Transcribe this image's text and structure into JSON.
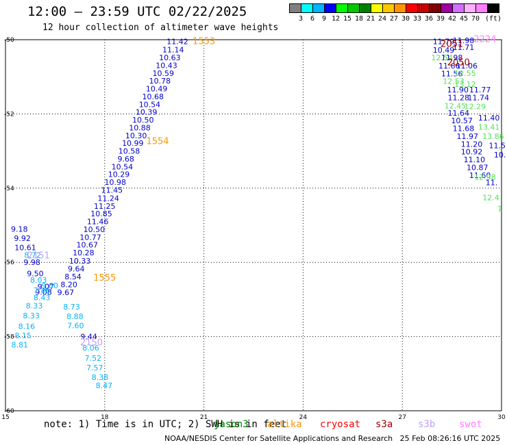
{
  "header": {
    "title": "12:00 – 23:59 UTC 02/22/2025",
    "subtitle": "12 hour collection of altimeter wave heights"
  },
  "legend": {
    "unit": "(ft)",
    "colors": [
      "#808080",
      "#00ffff",
      "#00b4ff",
      "#0000ff",
      "#00ff00",
      "#00c800",
      "#008000",
      "#ffff00",
      "#ffc800",
      "#ff9600",
      "#ff0000",
      "#c80000",
      "#800000",
      "#a000a0",
      "#d070ff",
      "#ffb0ff",
      "#ff80ff",
      "#000000"
    ],
    "labels": [
      "3",
      "6",
      "9",
      "12",
      "15",
      "18",
      "21",
      "24",
      "27",
      "30",
      "33",
      "36",
      "39",
      "42",
      "45",
      "70"
    ]
  },
  "footer": {
    "note": "note: 1) Time is in UTC; 2) SWH is in feet",
    "satellites": [
      {
        "name": "jason3",
        "color": "#008000"
      },
      {
        "name": "altika",
        "color": "#ff9600"
      },
      {
        "name": "cryosat",
        "color": "#ff0000"
      },
      {
        "name": "s3a",
        "color": "#a00000"
      },
      {
        "name": "s3b",
        "color": "#c0a0ff"
      },
      {
        "name": "swot",
        "color": "#ff80ff"
      }
    ],
    "credit": "NOAA/NESDIS Center for Satellite Applications and Research   25 Feb 08:26:16 UTC 2025"
  },
  "chart_data": {
    "type": "scatter",
    "title": "12:00 – 23:59 UTC 02/22/2025",
    "subtitle": "12 hour collection of altimeter wave heights",
    "xlim": [
      15,
      30
    ],
    "ylim": [
      -60,
      -50
    ],
    "x_ticks": [
      "15",
      "18",
      "21",
      "24",
      "27",
      "30"
    ],
    "y_ticks": [
      "-50",
      "-52",
      "-54",
      "-56",
      "-58",
      "-60"
    ],
    "grid": true,
    "passes": [
      {
        "label": "1553",
        "lon": 21.0,
        "lat": -50.03,
        "color": "#ff9600"
      },
      {
        "label": "1554",
        "lon": 19.6,
        "lat": -52.72,
        "color": "#ff9600"
      },
      {
        "label": "1555",
        "lon": 18.0,
        "lat": -56.4,
        "color": "#ff9600"
      },
      {
        "label": "2151",
        "lon": 16.0,
        "lat": -55.8,
        "color": "#c0a0ff"
      },
      {
        "label": "2150",
        "lon": 17.6,
        "lat": -58.15,
        "color": "#c0a0ff"
      },
      {
        "label": "2051",
        "lon": 28.5,
        "lat": -50.1,
        "color": "#a00000"
      },
      {
        "label": "2050",
        "lon": 28.7,
        "lat": -50.6,
        "color": "#a00000"
      },
      {
        "label": "2224",
        "lon": 29.5,
        "lat": -49.97,
        "color": "#ff80ff"
      }
    ],
    "series": [
      {
        "color": "#0000c8",
        "points": [
          [
            20.2,
            -50.05,
            "11.42"
          ],
          [
            20.07,
            -50.27,
            "11.14"
          ],
          [
            19.97,
            -50.48,
            "10.63"
          ],
          [
            19.87,
            -50.69,
            "10.43"
          ],
          [
            19.77,
            -50.9,
            "10.59"
          ],
          [
            19.67,
            -51.11,
            "10.78"
          ],
          [
            19.57,
            -51.32,
            "10.49"
          ],
          [
            19.46,
            -51.53,
            "10.68"
          ],
          [
            19.36,
            -51.74,
            "10.54"
          ],
          [
            19.26,
            -51.95,
            "10.39"
          ],
          [
            19.16,
            -52.16,
            "10.50"
          ],
          [
            19.06,
            -52.37,
            "10.88"
          ],
          [
            18.95,
            -52.58,
            "10.30"
          ],
          [
            18.85,
            -52.79,
            "10.99"
          ],
          [
            18.74,
            -53.0,
            "10.58"
          ],
          [
            18.64,
            -53.21,
            "9.68"
          ],
          [
            18.53,
            -53.42,
            "10.54"
          ],
          [
            18.43,
            -53.63,
            "10.29"
          ],
          [
            18.32,
            -53.84,
            "10.98"
          ],
          [
            18.22,
            -54.05,
            "11.45"
          ],
          [
            18.11,
            -54.27,
            "11.24"
          ],
          [
            18.0,
            -54.48,
            "11.25"
          ],
          [
            17.9,
            -54.69,
            "10.85"
          ],
          [
            17.79,
            -54.9,
            "11.46"
          ],
          [
            17.68,
            -55.11,
            "10.50"
          ],
          [
            17.57,
            -55.32,
            "10.77"
          ],
          [
            17.47,
            -55.53,
            "10.67"
          ],
          [
            17.36,
            -55.74,
            "10.28"
          ],
          [
            17.25,
            -55.96,
            "10.33"
          ],
          [
            17.14,
            -56.17,
            "9.64"
          ],
          [
            17.04,
            -56.38,
            "8.54"
          ],
          [
            16.92,
            -56.6,
            "8.20"
          ],
          [
            16.82,
            -56.81,
            "9.67"
          ],
          [
            15.42,
            -55.1,
            "9.18"
          ],
          [
            15.51,
            -55.35,
            "9.92"
          ],
          [
            15.6,
            -55.6,
            "10.61"
          ],
          [
            15.8,
            -56.0,
            "9.98"
          ],
          [
            15.9,
            -56.3,
            "9.50"
          ],
          [
            16.22,
            -56.65,
            "9.07"
          ],
          [
            16.15,
            -56.8,
            "9.08"
          ]
        ]
      },
      {
        "color": "#00b4ff",
        "points": [
          [
            15.82,
            -55.8,
            "8.72"
          ],
          [
            16.0,
            -56.48,
            "8.03"
          ],
          [
            16.1,
            -56.75,
            "7.86"
          ],
          [
            16.34,
            -56.62,
            "9.60"
          ],
          [
            16.1,
            -56.95,
            "8.43"
          ],
          [
            17.0,
            -57.2,
            "8.73"
          ],
          [
            17.1,
            -57.45,
            "8.88"
          ],
          [
            17.12,
            -57.7,
            "7.60"
          ],
          [
            15.87,
            -57.17,
            "8.33"
          ],
          [
            15.78,
            -57.44,
            "8.33"
          ],
          [
            15.64,
            -57.72,
            "8.16"
          ],
          [
            15.53,
            -57.97,
            "8.15"
          ],
          [
            15.43,
            -58.22,
            "8.81"
          ],
          [
            17.58,
            -58.3,
            "8.06"
          ],
          [
            17.65,
            -58.58,
            "7.52"
          ],
          [
            17.7,
            -58.84,
            "7.57"
          ],
          [
            17.86,
            -59.1,
            "8.38"
          ],
          [
            17.98,
            -59.32,
            "8.47"
          ]
        ]
      },
      {
        "color": "#0000c8",
        "points": [
          [
            17.52,
            -58.0,
            "9.44"
          ]
        ]
      },
      {
        "color": "#0000c8",
        "points": [
          [
            28.25,
            -50.05,
            "11.79"
          ],
          [
            28.25,
            -50.28,
            "10.49"
          ],
          [
            28.5,
            -50.48,
            "11.98"
          ],
          [
            28.42,
            -50.7,
            "11.66"
          ],
          [
            28.5,
            -50.91,
            "11.56"
          ],
          [
            28.68,
            -51.35,
            "11.90"
          ],
          [
            28.7,
            -51.56,
            "11.28"
          ],
          [
            28.7,
            -51.97,
            "11.64"
          ],
          [
            28.8,
            -52.18,
            "10.57"
          ],
          [
            28.85,
            -52.39,
            "11.68"
          ],
          [
            28.97,
            -52.6,
            "11.97"
          ],
          [
            29.1,
            -52.81,
            "11.20"
          ],
          [
            29.1,
            -53.02,
            "10.92"
          ],
          [
            29.18,
            -53.23,
            "11.10"
          ],
          [
            29.27,
            -53.44,
            "10.87"
          ],
          [
            29.35,
            -53.65,
            "11.60"
          ],
          [
            29.7,
            -53.85,
            "11."
          ],
          [
            28.85,
            -50.02,
            "11.98"
          ],
          [
            28.85,
            -50.2,
            "11.71"
          ],
          [
            28.95,
            -50.7,
            "11.06"
          ],
          [
            29.35,
            -51.35,
            "11.77"
          ],
          [
            29.3,
            -51.56,
            "11.74"
          ],
          [
            29.62,
            -52.1,
            "11.40"
          ],
          [
            29.87,
            -52.85,
            "11.5"
          ],
          [
            29.95,
            -53.1,
            "10."
          ]
        ]
      },
      {
        "color": "#55e055",
        "points": [
          [
            28.2,
            -50.48,
            "12.54"
          ],
          [
            28.9,
            -50.9,
            "12.55"
          ],
          [
            28.55,
            -51.12,
            "12.53"
          ],
          [
            28.9,
            -51.2,
            "13.12"
          ],
          [
            28.6,
            -51.78,
            "12.45"
          ],
          [
            29.2,
            -51.8,
            "12.29"
          ],
          [
            29.62,
            -52.35,
            "13.41"
          ],
          [
            29.75,
            -52.6,
            "13.86"
          ],
          [
            29.5,
            -53.7,
            "12.98"
          ],
          [
            29.68,
            -54.25,
            "12.4"
          ],
          [
            29.95,
            -54.55,
            "1"
          ]
        ]
      }
    ]
  }
}
